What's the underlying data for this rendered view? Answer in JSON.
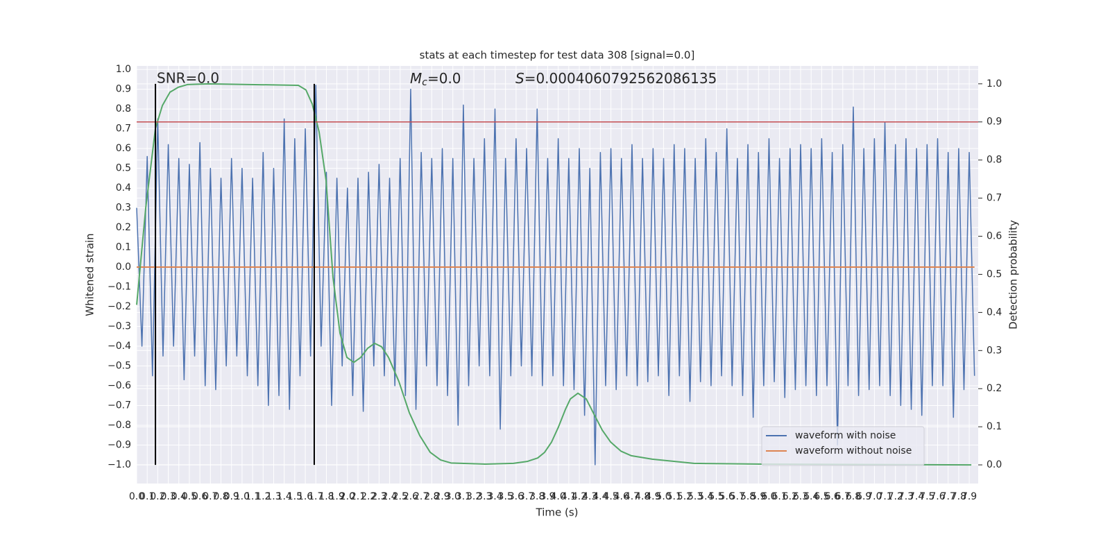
{
  "chart_data": {
    "type": "line",
    "title": "stats at each timestep for test data 308 [signal=0.0]",
    "xlabel": "Time (s)",
    "ylabel": "Whitened strain",
    "y2label": "Detection probability",
    "xlim": [
      0,
      7.985
    ],
    "ylim": [
      -1.095,
      1.018
    ],
    "y2lim": [
      -0.049,
      1.047
    ],
    "grid": true,
    "legend": "lower right",
    "xticks": [
      {
        "value": 0,
        "label": "0.0"
      },
      {
        "value": 0.1,
        "label": "0.1"
      },
      {
        "value": 0.2,
        "label": "0.2"
      },
      {
        "value": 0.3,
        "label": "0.3"
      },
      {
        "value": 0.4,
        "label": "0.4"
      },
      {
        "value": 0.5,
        "label": "0.5"
      },
      {
        "value": 0.6,
        "label": "0.6"
      },
      {
        "value": 0.7,
        "label": "0.7"
      },
      {
        "value": 0.8,
        "label": "0.8"
      },
      {
        "value": 0.9,
        "label": "0.9"
      },
      {
        "value": 1,
        "label": "1.0"
      },
      {
        "value": 1.1,
        "label": "1.1"
      },
      {
        "value": 1.2,
        "label": "1.2"
      },
      {
        "value": 1.3,
        "label": "1.3"
      },
      {
        "value": 1.4,
        "label": "1.4"
      },
      {
        "value": 1.5,
        "label": "1.5"
      },
      {
        "value": 1.6,
        "label": "1.6"
      },
      {
        "value": 1.7,
        "label": "1.7"
      },
      {
        "value": 1.8,
        "label": "1.8"
      },
      {
        "value": 1.9,
        "label": "1.9"
      },
      {
        "value": 2,
        "label": "2.0"
      },
      {
        "value": 2.1,
        "label": "2.1"
      },
      {
        "value": 2.2,
        "label": "2.2"
      },
      {
        "value": 2.3,
        "label": "2.3"
      },
      {
        "value": 2.4,
        "label": "2.4"
      },
      {
        "value": 2.5,
        "label": "2.5"
      },
      {
        "value": 2.6,
        "label": "2.6"
      },
      {
        "value": 2.7,
        "label": "2.7"
      },
      {
        "value": 2.8,
        "label": "2.8"
      },
      {
        "value": 2.9,
        "label": "2.9"
      },
      {
        "value": 3,
        "label": "3.0"
      },
      {
        "value": 3.1,
        "label": "3.1"
      },
      {
        "value": 3.2,
        "label": "3.2"
      },
      {
        "value": 3.3,
        "label": "3.3"
      },
      {
        "value": 3.4,
        "label": "3.4"
      },
      {
        "value": 3.5,
        "label": "3.5"
      },
      {
        "value": 3.6,
        "label": "3.6"
      },
      {
        "value": 3.7,
        "label": "3.7"
      },
      {
        "value": 3.8,
        "label": "3.8"
      },
      {
        "value": 3.9,
        "label": "3.9"
      },
      {
        "value": 4,
        "label": "4.0"
      },
      {
        "value": 4.1,
        "label": "4.1"
      },
      {
        "value": 4.2,
        "label": "4.2"
      },
      {
        "value": 4.3,
        "label": "4.3"
      },
      {
        "value": 4.4,
        "label": "4.4"
      },
      {
        "value": 4.5,
        "label": "4.5"
      },
      {
        "value": 4.6,
        "label": "4.6"
      },
      {
        "value": 4.7,
        "label": "4.7"
      },
      {
        "value": 4.8,
        "label": "4.8"
      },
      {
        "value": 4.9,
        "label": "4.9"
      },
      {
        "value": 5,
        "label": "5.0"
      },
      {
        "value": 5.1,
        "label": "5.1"
      },
      {
        "value": 5.2,
        "label": "5.2"
      },
      {
        "value": 5.3,
        "label": "5.3"
      },
      {
        "value": 5.4,
        "label": "5.4"
      },
      {
        "value": 5.5,
        "label": "5.5"
      },
      {
        "value": 5.6,
        "label": "5.6"
      },
      {
        "value": 5.7,
        "label": "5.7"
      },
      {
        "value": 5.8,
        "label": "5.8"
      },
      {
        "value": 5.9,
        "label": "5.9"
      },
      {
        "value": 6,
        "label": "6.0"
      },
      {
        "value": 6.1,
        "label": "6.1"
      },
      {
        "value": 6.2,
        "label": "6.2"
      },
      {
        "value": 6.3,
        "label": "6.3"
      },
      {
        "value": 6.4,
        "label": "6.4"
      },
      {
        "value": 6.5,
        "label": "6.5"
      },
      {
        "value": 6.6,
        "label": "6.6"
      },
      {
        "value": 6.7,
        "label": "6.7"
      },
      {
        "value": 6.8,
        "label": "6.8"
      },
      {
        "value": 6.9,
        "label": "6.9"
      },
      {
        "value": 7,
        "label": "7.0"
      },
      {
        "value": 7.1,
        "label": "7.1"
      },
      {
        "value": 7.2,
        "label": "7.2"
      },
      {
        "value": 7.3,
        "label": "7.3"
      },
      {
        "value": 7.4,
        "label": "7.4"
      },
      {
        "value": 7.5,
        "label": "7.5"
      },
      {
        "value": 7.6,
        "label": "7.6"
      },
      {
        "value": 7.7,
        "label": "7.7"
      },
      {
        "value": 7.8,
        "label": "7.8"
      },
      {
        "value": 7.9,
        "label": "7.9"
      }
    ],
    "yticks": [
      {
        "value": 1,
        "label": "1.0"
      },
      {
        "value": 0.9,
        "label": "0.9"
      },
      {
        "value": 0.8,
        "label": "0.8"
      },
      {
        "value": 0.7,
        "label": "0.7"
      },
      {
        "value": 0.6,
        "label": "0.6"
      },
      {
        "value": 0.5,
        "label": "0.5"
      },
      {
        "value": 0.4,
        "label": "0.4"
      },
      {
        "value": 0.3,
        "label": "0.3"
      },
      {
        "value": 0.2,
        "label": "0.2"
      },
      {
        "value": 0.1,
        "label": "0.1"
      },
      {
        "value": 0,
        "label": "0.0"
      },
      {
        "value": -0.1,
        "label": "−0.1"
      },
      {
        "value": -0.2,
        "label": "−0.2"
      },
      {
        "value": -0.3,
        "label": "−0.3"
      },
      {
        "value": -0.4,
        "label": "−0.4"
      },
      {
        "value": -0.5,
        "label": "−0.5"
      },
      {
        "value": -0.6,
        "label": "−0.6"
      },
      {
        "value": -0.7,
        "label": "−0.7"
      },
      {
        "value": -0.8,
        "label": "−0.8"
      },
      {
        "value": -0.9,
        "label": "−0.9"
      },
      {
        "value": -1,
        "label": "−1.0"
      }
    ],
    "y2ticks": [
      {
        "value": 1,
        "label": "1.0"
      },
      {
        "value": 0.9,
        "label": "0.9"
      },
      {
        "value": 0.8,
        "label": "0.8"
      },
      {
        "value": 0.7,
        "label": "0.7"
      },
      {
        "value": 0.6,
        "label": "0.6"
      },
      {
        "value": 0.5,
        "label": "0.5"
      },
      {
        "value": 0.4,
        "label": "0.4"
      },
      {
        "value": 0.3,
        "label": "0.3"
      },
      {
        "value": 0.2,
        "label": "0.2"
      },
      {
        "value": 0.1,
        "label": "0.1"
      },
      {
        "value": 0,
        "label": "0.0"
      }
    ],
    "series": [
      {
        "name": "waveform with noise",
        "color": "#4c72b0",
        "x": [
          0,
          0.05,
          0.1,
          0.15,
          0.2,
          0.25,
          0.3,
          0.35,
          0.4,
          0.45,
          0.5,
          0.55,
          0.6,
          0.65,
          0.7,
          0.75,
          0.8,
          0.85,
          0.9,
          0.95,
          1,
          1.05,
          1.1,
          1.15,
          1.2,
          1.25,
          1.3,
          1.35,
          1.4,
          1.45,
          1.5,
          1.55,
          1.6,
          1.65,
          1.7,
          1.75,
          1.8,
          1.85,
          1.9,
          1.95,
          2,
          2.05,
          2.1,
          2.15,
          2.2,
          2.25,
          2.3,
          2.35,
          2.4,
          2.45,
          2.5,
          2.55,
          2.6,
          2.65,
          2.7,
          2.75,
          2.8,
          2.85,
          2.9,
          2.95,
          3,
          3.05,
          3.1,
          3.15,
          3.2,
          3.25,
          3.3,
          3.35,
          3.4,
          3.45,
          3.5,
          3.55,
          3.6,
          3.65,
          3.7,
          3.75,
          3.8,
          3.85,
          3.9,
          3.95,
          4,
          4.05,
          4.1,
          4.15,
          4.2,
          4.25,
          4.3,
          4.35,
          4.4,
          4.45,
          4.5,
          4.55,
          4.6,
          4.65,
          4.7,
          4.75,
          4.8,
          4.85,
          4.9,
          4.95,
          5,
          5.05,
          5.1,
          5.15,
          5.2,
          5.25,
          5.3,
          5.35,
          5.4,
          5.45,
          5.5,
          5.55,
          5.6,
          5.65,
          5.7,
          5.75,
          5.8,
          5.85,
          5.9,
          5.95,
          6,
          6.05,
          6.1,
          6.15,
          6.2,
          6.25,
          6.3,
          6.35,
          6.4,
          6.45,
          6.5,
          6.55,
          6.6,
          6.65,
          6.7,
          6.75,
          6.8,
          6.85,
          6.9,
          6.95,
          7,
          7.05,
          7.1,
          7.15,
          7.2,
          7.25,
          7.3,
          7.35,
          7.4,
          7.45,
          7.5,
          7.55,
          7.6,
          7.65,
          7.7,
          7.75,
          7.8,
          7.85,
          7.9,
          7.95
        ],
        "values": [
          0.3,
          -0.4,
          0.56,
          -0.55,
          0.75,
          -0.45,
          0.62,
          -0.4,
          0.55,
          -0.57,
          0.52,
          -0.45,
          0.63,
          -0.6,
          0.5,
          -0.62,
          0.45,
          -0.5,
          0.55,
          -0.45,
          0.5,
          -0.55,
          0.45,
          -0.6,
          0.58,
          -0.7,
          0.5,
          -0.65,
          0.75,
          -0.72,
          0.65,
          -0.55,
          0.7,
          -0.45,
          0.92,
          -0.4,
          0.48,
          -0.7,
          0.45,
          -0.5,
          0.4,
          -0.65,
          0.45,
          -0.73,
          0.48,
          -0.5,
          0.52,
          -0.55,
          0.45,
          -0.6,
          0.55,
          -0.65,
          0.9,
          -0.72,
          0.58,
          -0.5,
          0.55,
          -0.6,
          0.6,
          -0.65,
          0.55,
          -0.8,
          0.82,
          -0.6,
          0.55,
          -0.5,
          0.65,
          -0.55,
          0.8,
          -0.82,
          0.55,
          -0.55,
          0.65,
          -0.5,
          0.6,
          -0.55,
          0.8,
          -0.6,
          0.55,
          -0.55,
          0.65,
          -0.6,
          0.55,
          -0.62,
          0.6,
          -0.75,
          0.5,
          -1.0,
          0.58,
          -0.6,
          0.6,
          -0.62,
          0.55,
          -0.55,
          0.62,
          -0.6,
          0.55,
          -0.58,
          0.6,
          -0.55,
          0.55,
          -0.65,
          0.62,
          -0.55,
          0.6,
          -0.68,
          0.55,
          -0.58,
          0.65,
          -0.6,
          0.58,
          -0.55,
          0.7,
          -0.6,
          0.55,
          -0.65,
          0.62,
          -0.76,
          0.58,
          -0.6,
          0.65,
          -0.58,
          0.55,
          -0.66,
          0.6,
          -0.62,
          0.62,
          -0.6,
          0.6,
          -0.65,
          0.65,
          -0.6,
          0.58,
          -0.9,
          0.62,
          -0.6,
          0.81,
          -0.65,
          0.6,
          -0.62,
          0.65,
          -0.6,
          0.73,
          -0.65,
          0.62,
          -0.7,
          0.65,
          -0.72,
          0.6,
          -0.75,
          0.62,
          -0.6,
          0.65,
          -0.6,
          0.58,
          -0.76,
          0.6,
          -0.62,
          0.58,
          -0.55
        ]
      },
      {
        "name": "waveform without noise",
        "color": "#dd8452",
        "x": [
          0,
          7.95
        ],
        "values": [
          0,
          0
        ]
      },
      {
        "color": "#55a868",
        "axis": "y2",
        "x": [
          0,
          0.086,
          0.178,
          0.244,
          0.316,
          0.395,
          0.481,
          0.678,
          1.534,
          1.606,
          1.666,
          1.731,
          1.797,
          1.863,
          1.929,
          1.995,
          2.061,
          2.126,
          2.192,
          2.258,
          2.324,
          2.39,
          2.488,
          2.587,
          2.686,
          2.785,
          2.883,
          2.982,
          3.311,
          3.575,
          3.706,
          3.805,
          3.871,
          3.937,
          4.003,
          4.069,
          4.115,
          4.187,
          4.266,
          4.332,
          4.418,
          4.497,
          4.595,
          4.694,
          4.892,
          5.286,
          5.945,
          7.92
        ],
        "values": [
          0.42,
          0.674,
          0.883,
          0.943,
          0.978,
          0.991,
          0.998,
          1.0,
          0.996,
          0.984,
          0.947,
          0.874,
          0.747,
          0.492,
          0.346,
          0.282,
          0.269,
          0.282,
          0.306,
          0.319,
          0.31,
          0.282,
          0.219,
          0.137,
          0.077,
          0.033,
          0.013,
          0.005,
          0.002,
          0.004,
          0.009,
          0.018,
          0.033,
          0.06,
          0.1,
          0.146,
          0.173,
          0.188,
          0.173,
          0.137,
          0.091,
          0.06,
          0.036,
          0.024,
          0.015,
          0.004,
          0.002,
          0.0
        ]
      }
    ],
    "hlines": [
      {
        "y": 0.9,
        "axis": "y2",
        "color": "#c44e52"
      }
    ],
    "vlines": [
      {
        "x": 0.178,
        "ymin": 0,
        "ymax": 1,
        "axis": "y2",
        "color": "#000000"
      },
      {
        "x": 1.685,
        "ymin": 0,
        "ymax": 1,
        "axis": "y2",
        "color": "#000000"
      }
    ],
    "annotations": [
      "SNR=0.0",
      {
        "parts": [
          "M",
          "c",
          "=0.0"
        ]
      },
      {
        "parts": [
          "S",
          "=0.0004060792562086135"
        ]
      }
    ]
  }
}
